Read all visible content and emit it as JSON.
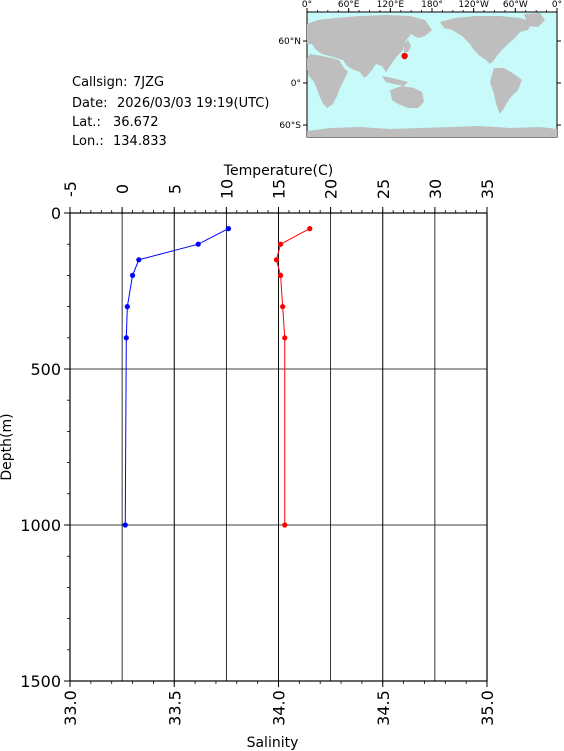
{
  "info": {
    "callsign_label": "Callsign:",
    "callsign": "7JZG",
    "date_label": "Date:",
    "date": "2026/03/03 19:19(UTC)",
    "lat_label": "Lat.:",
    "lat": "36.672",
    "lon_label": "Lon.:",
    "lon": "134.833"
  },
  "map": {
    "top_labels": [
      "0°",
      "60°E",
      "120°E",
      "180°",
      "120°W",
      "60°W",
      "0°"
    ],
    "left_labels": [
      "60°N",
      "0°",
      "60°S"
    ],
    "ocean_color": "#c8fafa",
    "land_color": "#bebebe",
    "marker": {
      "lon": 134.833,
      "lat": 36.672,
      "color": "#ff0000"
    }
  },
  "chart_data": {
    "type": "line",
    "ylabel": "Depth(m)",
    "ylim": [
      0,
      1500
    ],
    "y_ticks": [
      "0",
      "500",
      "1000",
      "1500"
    ],
    "y_inverted": true,
    "grid": true,
    "top_axis": {
      "label": "Temperature(C)",
      "range": [
        -5,
        35
      ],
      "ticks": [
        "-5",
        "0",
        "5",
        "10",
        "15",
        "20",
        "25",
        "30",
        "35"
      ]
    },
    "bottom_axis": {
      "label": "Salinity",
      "range": [
        33.0,
        35.0
      ],
      "ticks": [
        "33.0",
        "33.5",
        "34.0",
        "34.5",
        "35.0"
      ]
    },
    "series": [
      {
        "axis": "top",
        "color": "#0000ff",
        "points": [
          [
            10.2,
            50
          ],
          [
            7.3,
            100
          ],
          [
            1.6,
            150
          ],
          [
            1.0,
            200
          ],
          [
            0.5,
            300
          ],
          [
            0.4,
            400
          ],
          [
            0.3,
            1000
          ]
        ]
      },
      {
        "axis": "bottom",
        "color": "#ff0000",
        "points": [
          [
            34.15,
            50
          ],
          [
            34.01,
            100
          ],
          [
            33.99,
            150
          ],
          [
            34.01,
            200
          ],
          [
            34.02,
            300
          ],
          [
            34.03,
            400
          ],
          [
            34.03,
            1000
          ]
        ]
      }
    ]
  }
}
